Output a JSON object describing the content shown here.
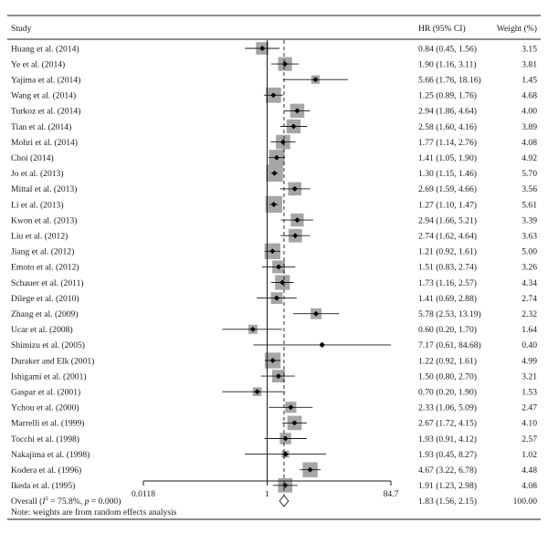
{
  "chart_data": {
    "type": "forest",
    "headers": {
      "study": "Study",
      "hr": "HR (95% CI)",
      "weight": "Weight (%)"
    },
    "studies": [
      {
        "label": "Huang et al. (2014)",
        "hr": 0.84,
        "lo": 0.45,
        "hi": 1.56,
        "ci": "0.84 (0.45, 1.56)",
        "weight": 3.15,
        "weight_text": "3.15"
      },
      {
        "label": "Ye et al. (2014)",
        "hr": 1.9,
        "lo": 1.16,
        "hi": 3.11,
        "ci": "1.90 (1.16, 3.11)",
        "weight": 3.81,
        "weight_text": "3.81"
      },
      {
        "label": "Yajima et al. (2014)",
        "hr": 5.66,
        "lo": 1.76,
        "hi": 18.16,
        "ci": "5.66 (1.76, 18.16)",
        "weight": 1.45,
        "weight_text": "1.45"
      },
      {
        "label": "Wang et al. (2014)",
        "hr": 1.25,
        "lo": 0.89,
        "hi": 1.76,
        "ci": "1.25 (0.89, 1.76)",
        "weight": 4.68,
        "weight_text": "4.68"
      },
      {
        "label": "Turkoz et al. (2014)",
        "hr": 2.94,
        "lo": 1.86,
        "hi": 4.64,
        "ci": "2.94 (1.86, 4.64)",
        "weight": 4.0,
        "weight_text": "4.00"
      },
      {
        "label": "Tian et al. (2014)",
        "hr": 2.58,
        "lo": 1.6,
        "hi": 4.16,
        "ci": "2.58 (1.60, 4.16)",
        "weight": 3.89,
        "weight_text": "3.89"
      },
      {
        "label": "Mohri et al. (2014)",
        "hr": 1.77,
        "lo": 1.14,
        "hi": 2.76,
        "ci": "1.77 (1.14, 2.76)",
        "weight": 4.08,
        "weight_text": "4.08"
      },
      {
        "label": "Choi (2014)",
        "hr": 1.41,
        "lo": 1.05,
        "hi": 1.9,
        "ci": "1.41 (1.05, 1.90)",
        "weight": 4.92,
        "weight_text": "4.92"
      },
      {
        "label": "Jo et al. (2013)",
        "hr": 1.3,
        "lo": 1.15,
        "hi": 1.46,
        "ci": "1.30 (1.15, 1.46)",
        "weight": 5.7,
        "weight_text": "5.70"
      },
      {
        "label": "Mittal et al. (2013)",
        "hr": 2.69,
        "lo": 1.59,
        "hi": 4.66,
        "ci": "2.69 (1.59, 4.66)",
        "weight": 3.56,
        "weight_text": "3.56"
      },
      {
        "label": "Li et al. (2013)",
        "hr": 1.27,
        "lo": 1.1,
        "hi": 1.47,
        "ci": "1.27 (1.10, 1.47)",
        "weight": 5.61,
        "weight_text": "5.61"
      },
      {
        "label": "Kwon et al. (2013)",
        "hr": 2.94,
        "lo": 1.66,
        "hi": 5.21,
        "ci": "2.94 (1.66, 5.21)",
        "weight": 3.39,
        "weight_text": "3.39"
      },
      {
        "label": "Liu et al. (2012)",
        "hr": 2.74,
        "lo": 1.62,
        "hi": 4.64,
        "ci": "2.74 (1.62, 4.64)",
        "weight": 3.63,
        "weight_text": "3.63"
      },
      {
        "label": "Jiang et al. (2012)",
        "hr": 1.21,
        "lo": 0.92,
        "hi": 1.61,
        "ci": "1.21 (0.92, 1.61)",
        "weight": 5.0,
        "weight_text": "5.00"
      },
      {
        "label": "Emoto et al. (2012)",
        "hr": 1.51,
        "lo": 0.83,
        "hi": 2.74,
        "ci": "1.51 (0.83, 2.74)",
        "weight": 3.26,
        "weight_text": "3.26"
      },
      {
        "label": "Schauer et al. (2011)",
        "hr": 1.73,
        "lo": 1.16,
        "hi": 2.57,
        "ci": "1.73 (1.16, 2.57)",
        "weight": 4.34,
        "weight_text": "4.34"
      },
      {
        "label": "Dilege et al. (2010)",
        "hr": 1.41,
        "lo": 0.69,
        "hi": 2.88,
        "ci": "1.41 (0.69, 2.88)",
        "weight": 2.74,
        "weight_text": "2.74"
      },
      {
        "label": "Zhang et al. (2009)",
        "hr": 5.78,
        "lo": 2.53,
        "hi": 13.19,
        "ci": "5.78 (2.53, 13.19)",
        "weight": 2.32,
        "weight_text": "2.32"
      },
      {
        "label": "Ucar et al. (2008)",
        "hr": 0.6,
        "lo": 0.2,
        "hi": 1.7,
        "ci": "0.60 (0.20, 1.70)",
        "weight": 1.64,
        "weight_text": "1.64"
      },
      {
        "label": "Shimizu et al. (2005)",
        "hr": 7.17,
        "lo": 0.61,
        "hi": 84.68,
        "ci": "7.17 (0.61, 84.68)",
        "weight": 0.4,
        "weight_text": "0.40"
      },
      {
        "label": "Duraker and Elk (2001)",
        "hr": 1.22,
        "lo": 0.92,
        "hi": 1.61,
        "ci": "1.22 (0.92, 1.61)",
        "weight": 4.99,
        "weight_text": "4.99"
      },
      {
        "label": "Ishigami et al. (2001)",
        "hr": 1.5,
        "lo": 0.8,
        "hi": 2.7,
        "ci": "1.50 (0.80, 2.70)",
        "weight": 3.21,
        "weight_text": "3.21"
      },
      {
        "label": "Gaspar et al. (2001)",
        "hr": 0.7,
        "lo": 0.2,
        "hi": 1.9,
        "ci": "0.70 (0.20, 1.90)",
        "weight": 1.53,
        "weight_text": "1.53"
      },
      {
        "label": "Ychou et al. (2000)",
        "hr": 2.33,
        "lo": 1.06,
        "hi": 5.09,
        "ci": "2.33 (1.06, 5.09)",
        "weight": 2.47,
        "weight_text": "2.47"
      },
      {
        "label": "Marrelli et al. (1999)",
        "hr": 2.67,
        "lo": 1.72,
        "hi": 4.15,
        "ci": "2.67 (1.72, 4.15)",
        "weight": 4.1,
        "weight_text": "4.10"
      },
      {
        "label": "Tocchi et al. (1998)",
        "hr": 1.93,
        "lo": 0.91,
        "hi": 4.12,
        "ci": "1.93 (0.91, 4.12)",
        "weight": 2.57,
        "weight_text": "2.57"
      },
      {
        "label": "Nakajima et al. (1998)",
        "hr": 1.93,
        "lo": 0.45,
        "hi": 8.27,
        "ci": "1.93 (0.45, 8.27)",
        "weight": 1.02,
        "weight_text": "1.02"
      },
      {
        "label": "Kodera et al. (1996)",
        "hr": 4.67,
        "lo": 3.22,
        "hi": 6.78,
        "ci": "4.67 (3.22, 6.78)",
        "weight": 4.48,
        "weight_text": "4.48"
      },
      {
        "label": "Ikeda et al. (1995)",
        "hr": 1.91,
        "lo": 1.23,
        "hi": 2.98,
        "ci": "1.91 (1.23, 2.98)",
        "weight": 4.08,
        "weight_text": "4.08"
      }
    ],
    "overall": {
      "label_prefix": "Overall (",
      "label_i2": "I",
      "label_i2_sup": "2",
      "label_mid": " = 75.8%, ",
      "label_p": "p",
      "label_tail": " = 0.000)",
      "hr": 1.83,
      "lo": 1.56,
      "hi": 2.15,
      "ci": "1.83 (1.56, 2.15)",
      "weight": 100.0,
      "weight_text": "100.00"
    },
    "x_axis": {
      "scale": "log",
      "range": [
        0.0118,
        84.7
      ],
      "ticks": [
        {
          "value": 0.0118,
          "label": "0.0118"
        },
        {
          "value": 1,
          "label": "1"
        },
        {
          "value": 84.7,
          "label": "84.7"
        }
      ]
    },
    "reference_line": 1,
    "note": "Note: weights are from random effects analysis",
    "colors": {
      "square": "#a6a6a6",
      "line": "#1a1a1a",
      "text": "#1a1a1a",
      "point": "#000000"
    }
  }
}
